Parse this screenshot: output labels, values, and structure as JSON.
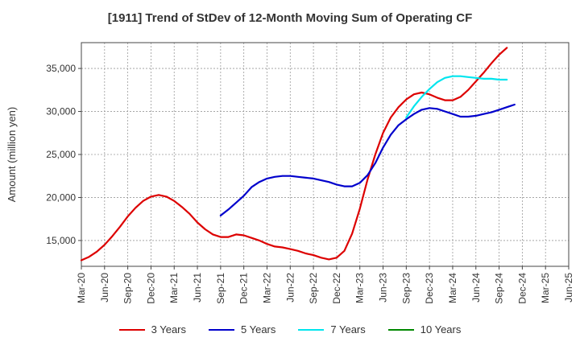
{
  "chart_data": {
    "type": "line",
    "title": "[1911]  Trend of StDev of 12-Month Moving Sum of Operating CF",
    "ylabel": "Amount (million yen)",
    "xlabel": "",
    "ylim": [
      12000,
      38000
    ],
    "y_ticks": [
      15000,
      20000,
      25000,
      30000,
      35000
    ],
    "y_tick_labels": [
      "15,000",
      "20,000",
      "25,000",
      "30,000",
      "35,000"
    ],
    "x_tick_labels": [
      "Mar-20",
      "Jun-20",
      "Sep-20",
      "Dec-20",
      "Mar-21",
      "Jun-21",
      "Sep-21",
      "Dec-21",
      "Mar-22",
      "Jun-22",
      "Sep-22",
      "Dec-22",
      "Mar-23",
      "Jun-23",
      "Sep-23",
      "Dec-23",
      "Mar-24",
      "Jun-24",
      "Sep-24",
      "Dec-24",
      "Mar-25",
      "Jun-25"
    ],
    "grid": true,
    "legend_position": "bottom",
    "series": [
      {
        "name": "3 Years",
        "color": "#dd0000",
        "start_index": 0,
        "values": [
          12700,
          13100,
          13700,
          14500,
          15500,
          16600,
          17800,
          18800,
          19600,
          20100,
          20300,
          20100,
          19600,
          18900,
          18100,
          17100,
          16300,
          15700,
          15400,
          15400,
          15700,
          15600,
          15300,
          15000,
          14600,
          14300,
          14200,
          14000,
          13800,
          13500,
          13300,
          13000,
          12800,
          13000,
          13800,
          15800,
          18700,
          22100,
          25000,
          27500,
          29300,
          30500,
          31400,
          32000,
          32200,
          32000,
          31600,
          31300,
          31300,
          31700,
          32500,
          33500,
          34500,
          35600,
          36600,
          37400
        ]
      },
      {
        "name": "5 Years",
        "color": "#0000cc",
        "start_index": 18,
        "values": [
          17900,
          18600,
          19400,
          20200,
          21200,
          21800,
          22200,
          22400,
          22500,
          22500,
          22400,
          22300,
          22200,
          22000,
          21800,
          21500,
          21300,
          21300,
          21700,
          22600,
          24000,
          25800,
          27300,
          28400,
          29100,
          29700,
          30200,
          30400,
          30300,
          30000,
          29700,
          29400,
          29400,
          29500,
          29700,
          29900,
          30200,
          30500,
          30800
        ]
      },
      {
        "name": "7 Years",
        "color": "#00e5ee",
        "start_index": 42,
        "values": [
          29300,
          30600,
          31700,
          32600,
          33400,
          33900,
          34100,
          34100,
          34000,
          33900,
          33800,
          33800,
          33700,
          33700
        ]
      },
      {
        "name": "10 Years",
        "color": "#008800",
        "start_index": 0,
        "values": []
      }
    ]
  }
}
